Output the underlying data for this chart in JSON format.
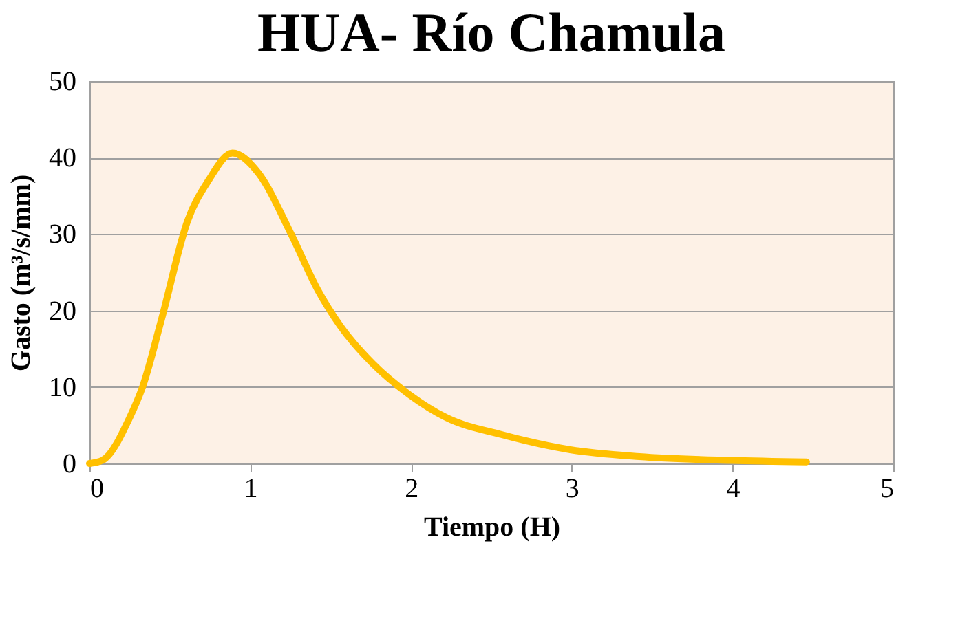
{
  "chart_data": {
    "type": "line",
    "title": "HUA- Río Chamula",
    "xlabel": "Tiempo (H)",
    "ylabel": "Gasto (m³/s/mm)",
    "x": [
      0,
      0.08,
      0.25,
      0.33,
      0.45,
      0.61,
      0.74,
      0.89,
      1.05,
      1.25,
      1.42,
      1.56,
      1.76,
      1.99,
      2.22,
      2.56,
      2.99,
      3.42,
      3.99,
      4.46
    ],
    "series": [
      {
        "color": "#ffc000",
        "values": [
          0,
          0.4,
          6,
          10,
          19,
          31.7,
          37,
          40.6,
          38,
          30.2,
          22.7,
          18,
          13.1,
          9,
          6,
          3.8,
          1.8,
          0.9,
          0.4,
          0.2
        ]
      }
    ],
    "xlim": [
      0,
      5
    ],
    "xticks": [
      0,
      1,
      2,
      3,
      4,
      5
    ],
    "ylim": [
      0,
      50
    ],
    "yticks": [
      0,
      10,
      20,
      30,
      40,
      50
    ],
    "grid": "y",
    "marker": "none",
    "line_style": "solid"
  }
}
